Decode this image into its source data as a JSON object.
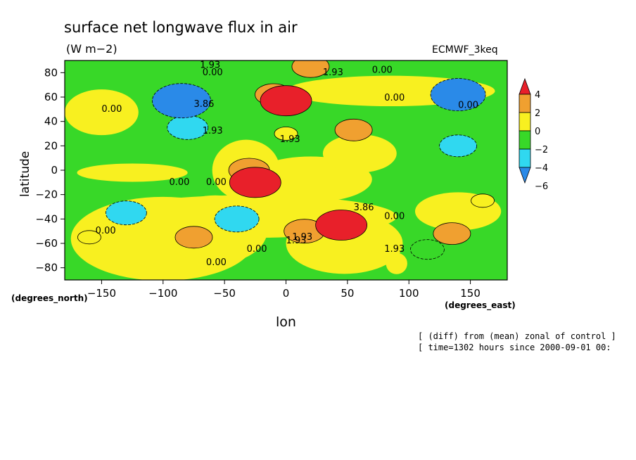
{
  "chart_data": {
    "type": "heatmap",
    "title": "surface net longwave flux in air",
    "units": "(W m−2)",
    "model": "ECMWF_3keq",
    "xlabel": "lon",
    "ylabel": "latitude",
    "xunits": "(degrees_east)",
    "yunits": "(degrees_north)",
    "xlim": [
      -180,
      180
    ],
    "ylim": [
      -90,
      90
    ],
    "xticks": [
      "−150",
      "−100",
      "−50",
      "0",
      "50",
      "100",
      "150"
    ],
    "xtick_values": [
      -150,
      -100,
      -50,
      0,
      50,
      100,
      150
    ],
    "yticks": [
      "80",
      "60",
      "40",
      "20",
      "0",
      "−20",
      "−40",
      "−60",
      "−80"
    ],
    "ytick_values": [
      80,
      60,
      40,
      20,
      0,
      -20,
      -40,
      -60,
      -80
    ],
    "colorbar": {
      "levels": [
        "4",
        "2",
        "0",
        "−2",
        "−4",
        "−6"
      ],
      "level_values": [
        4,
        2,
        0,
        -2,
        -4,
        -6
      ],
      "colors": [
        "#e8202a",
        "#f0a030",
        "#f8f020",
        "#38d828",
        "#30d8f0",
        "#2a8ae8"
      ]
    },
    "contour_labels": [
      "1.93",
      "0.00",
      "1.93",
      "0.00",
      "0.00",
      "3.86",
      "1.93",
      "0.00",
      "1.93",
      "0.00",
      "0.00",
      "0.00",
      "3.86",
      "0.00",
      "0.00",
      "1.93",
      "0.00",
      "1.93",
      "0.00",
      "1.93"
    ],
    "regions": [
      {
        "lon": -85,
        "lat": 57,
        "value": -5.5
      },
      {
        "lon": 140,
        "lat": 62,
        "value": -5
      },
      {
        "lon": -80,
        "lat": 35,
        "value": -3
      },
      {
        "lon": 140,
        "lat": 20,
        "value": -2.5
      },
      {
        "lon": -130,
        "lat": -35,
        "value": -3
      },
      {
        "lon": -40,
        "lat": -40,
        "value": -3.5
      },
      {
        "lon": 115,
        "lat": -65,
        "value": -2
      },
      {
        "lon": 0,
        "lat": 57,
        "value": 4.5
      },
      {
        "lon": -10,
        "lat": 62,
        "value": 2.5
      },
      {
        "lon": 20,
        "lat": 85,
        "value": 2.5
      },
      {
        "lon": 55,
        "lat": 33,
        "value": 2.5
      },
      {
        "lon": -30,
        "lat": 0,
        "value": 3
      },
      {
        "lon": -25,
        "lat": -10,
        "value": 4.5
      },
      {
        "lon": 45,
        "lat": -45,
        "value": 4.5
      },
      {
        "lon": 15,
        "lat": -50,
        "value": 3
      },
      {
        "lon": -75,
        "lat": -55,
        "value": 2.5
      },
      {
        "lon": 135,
        "lat": -52,
        "value": 2.5
      },
      {
        "lon": -160,
        "lat": -55,
        "value": 0.5
      },
      {
        "lon": 0,
        "lat": 30,
        "value": 0.5
      },
      {
        "lon": 160,
        "lat": -25,
        "value": 0.5
      }
    ]
  },
  "annotations": {
    "line1": "[ (diff) from (mean) zonal of control ]",
    "line2": "[ time=1302 hours since 2000-09-01 00:"
  }
}
